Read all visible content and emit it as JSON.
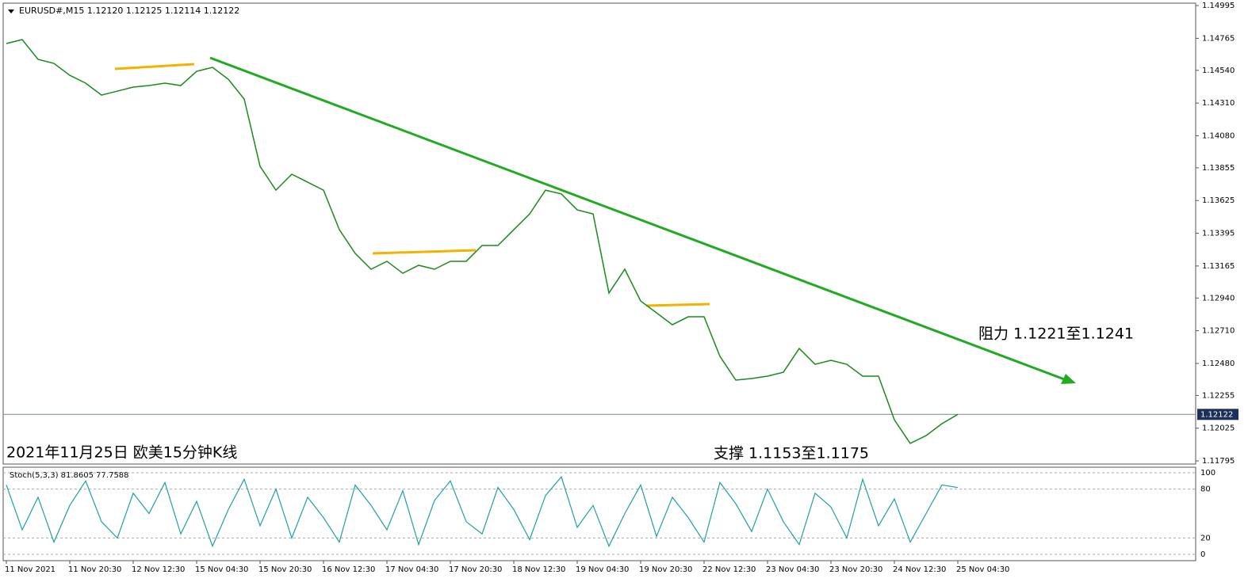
{
  "chart_data": {
    "type": "line",
    "header": "EURUSD#,M15  1.12120 1.12125 1.12114 1.12122",
    "caption": "2021年11月25日 欧美15分钟K线",
    "annotations": [
      "阻力 1.1221至1.1241",
      "支撑 1.1153至1.1175"
    ],
    "categories": [
      "11 Nov 2021",
      null,
      null,
      null,
      "11 Nov 20:30",
      null,
      null,
      null,
      "12 Nov 12:30",
      null,
      null,
      null,
      "15 Nov 04:30",
      null,
      null,
      null,
      "15 Nov 20:30",
      null,
      null,
      null,
      "16 Nov 12:30",
      null,
      null,
      null,
      "17 Nov 04:30",
      null,
      null,
      null,
      "17 Nov 20:30",
      null,
      null,
      null,
      "18 Nov 12:30",
      null,
      null,
      null,
      "19 Nov 04:30",
      null,
      null,
      null,
      "19 Nov 20:30",
      null,
      null,
      null,
      "22 Nov 12:30",
      null,
      null,
      null,
      "23 Nov 04:30",
      null,
      null,
      null,
      "23 Nov 20:30",
      null,
      null,
      null,
      "24 Nov 12:30",
      null,
      null,
      null,
      "25 Nov 04:30"
    ],
    "values": [
      1.14728,
      1.14756,
      1.14617,
      1.14589,
      1.14505,
      1.1445,
      1.14366,
      1.14394,
      1.14422,
      1.14433,
      1.1445,
      1.14433,
      1.14533,
      1.14561,
      1.14477,
      1.14338,
      1.13865,
      1.13698,
      1.1381,
      1.13754,
      1.13698,
      1.1342,
      1.13253,
      1.13142,
      1.13198,
      1.13114,
      1.1317,
      1.13142,
      1.13198,
      1.13198,
      1.13309,
      1.13309,
      1.1342,
      1.13531,
      1.13698,
      1.13671,
      1.13559,
      1.13531,
      1.12975,
      1.13142,
      1.12919,
      1.12836,
      1.12752,
      1.12808,
      1.12808,
      1.1253,
      1.12363,
      1.12374,
      1.12391,
      1.12418,
      1.12585,
      1.12474,
      1.12502,
      1.12474,
      1.12391,
      1.12391,
      1.12084,
      1.11918,
      1.11973,
      1.12057,
      1.12122
    ],
    "color": "#1a8a1a",
    "ylim": [
      1.11773,
      1.15012
    ],
    "yticks": [
      1.14995,
      1.14765,
      {
        "value": 1.1454,
        "label": "1.14540"
      },
      {
        "value": 1.1431,
        "label": "1.14310"
      },
      {
        "value": 1.1408,
        "label": "1.14080"
      },
      1.13855,
      1.13625,
      1.13395,
      1.13165,
      {
        "value": 1.1294,
        "label": "1.12940"
      },
      {
        "value": 1.1271,
        "label": "1.12710"
      },
      {
        "value": 1.1248,
        "label": "1.12480"
      },
      1.12255,
      1.12025,
      1.11795
    ],
    "current_price": 1.12122,
    "stoch": {
      "label": "Stoch(5,3,3) 81.8605 77.7588",
      "color": "#20a0a0",
      "values": [
        85,
        30,
        70,
        15,
        60,
        90,
        40,
        20,
        75,
        50,
        88,
        25,
        65,
        10,
        55,
        92,
        35,
        80,
        20,
        70,
        45,
        15,
        85,
        60,
        30,
        78,
        12,
        66,
        90,
        40,
        25,
        82,
        55,
        18,
        72,
        95,
        33,
        60,
        10,
        50,
        85,
        22,
        70,
        45,
        15,
        88,
        62,
        28,
        80,
        40,
        12,
        75,
        58,
        20,
        92,
        35,
        68,
        15,
        50,
        85,
        81.8605
      ],
      "ylim": [
        0,
        100
      ],
      "yticks": [
        0,
        20,
        80,
        100
      ]
    }
  }
}
